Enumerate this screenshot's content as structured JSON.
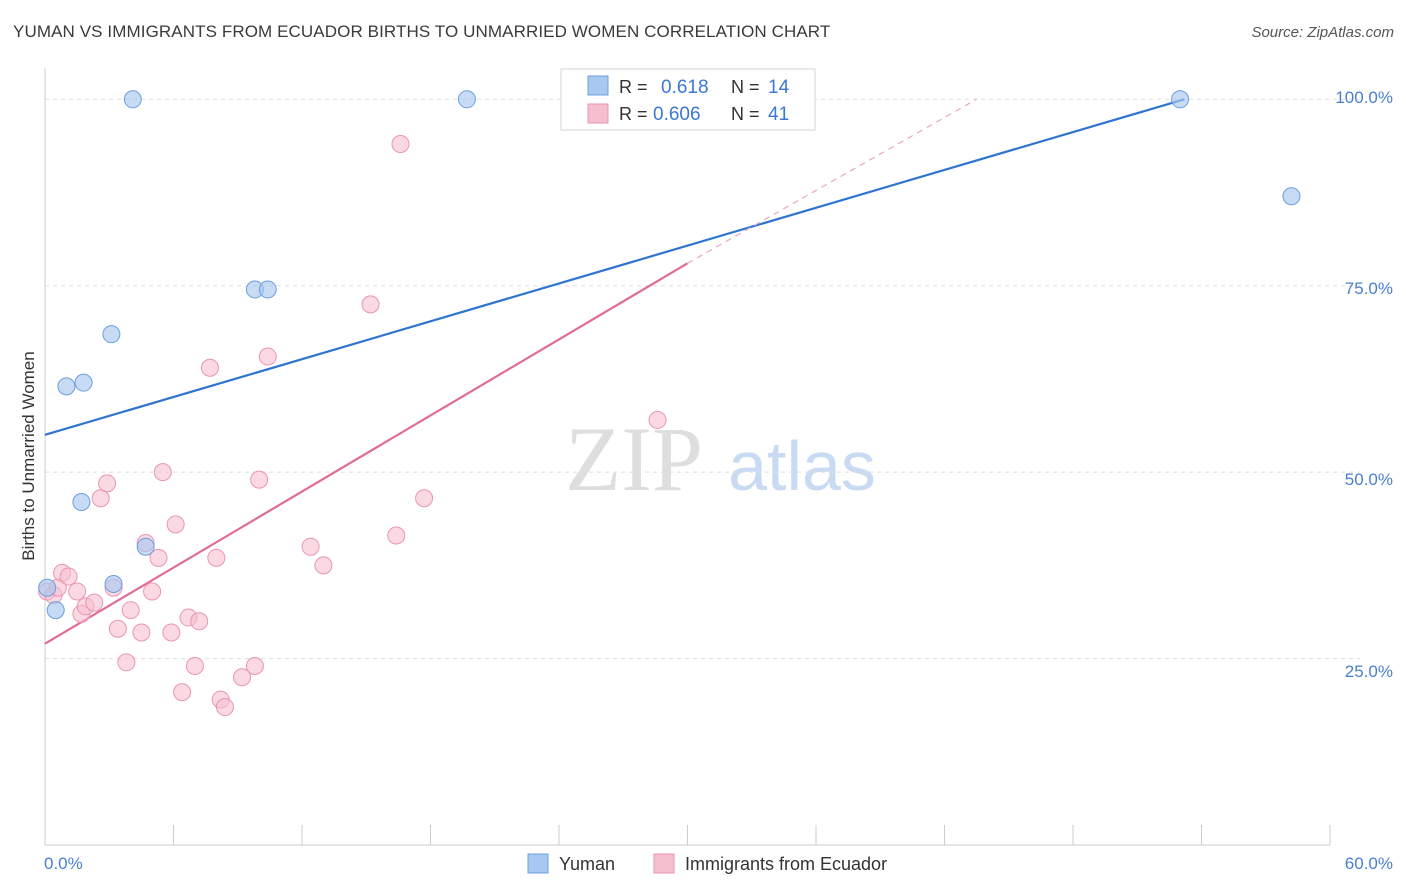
{
  "header": {
    "title": "YUMAN VS IMMIGRANTS FROM ECUADOR BIRTHS TO UNMARRIED WOMEN CORRELATION CHART",
    "source": "Source: ZipAtlas.com"
  },
  "watermark": {
    "zip": "ZIP",
    "atlas": "atlas"
  },
  "legend_top": [
    {
      "r_label": "R =",
      "r_value": "0.618",
      "n_label": "N =",
      "n_value": "14"
    },
    {
      "r_label": "R =",
      "r_value": "0.606",
      "n_label": "N =",
      "n_value": "41"
    }
  ],
  "colors": {
    "blue_fill": "#a9c8ef",
    "blue_stroke": "#6c9ee0",
    "blue_line": "#2f74d0",
    "pink_fill": "#f6bfd0",
    "pink_stroke": "#e896b2",
    "pink_line": "#e06c96",
    "value_text": "#3a78d4",
    "grid": "#dddddd",
    "axis_text": "#4a7fd0"
  },
  "chart_data": {
    "type": "scatter",
    "title": "YUMAN VS IMMIGRANTS FROM ECUADOR BIRTHS TO UNMARRIED WOMEN CORRELATION CHART",
    "ylabel": "Births to Unmarried Women",
    "xlabel": "",
    "xlim": [
      0,
      60
    ],
    "ylim": [
      0,
      105
    ],
    "x_tick_labels": [
      "0.0%",
      "60.0%"
    ],
    "y_ticks": [
      25,
      50,
      75,
      100
    ],
    "y_tick_labels": [
      "25.0%",
      "50.0%",
      "75.0%",
      "100.0%"
    ],
    "series": [
      {
        "name": "Yuman",
        "r": 0.618,
        "n": 14,
        "points": [
          [
            0.1,
            34.5
          ],
          [
            0.5,
            31.5
          ],
          [
            1.0,
            61.5
          ],
          [
            1.8,
            62.0
          ],
          [
            1.7,
            46.0
          ],
          [
            3.1,
            68.5
          ],
          [
            3.2,
            35.0
          ],
          [
            4.1,
            100.0
          ],
          [
            4.7,
            40.0
          ],
          [
            9.8,
            74.5
          ],
          [
            10.4,
            74.5
          ],
          [
            19.7,
            100.0
          ],
          [
            53.0,
            100.0
          ],
          [
            58.2,
            87.0
          ]
        ],
        "trend": {
          "x": [
            0,
            53.2
          ],
          "y": [
            55.0,
            100.0
          ]
        }
      },
      {
        "name": "Immigrants from Ecuador",
        "r": 0.606,
        "n": 41,
        "points": [
          [
            0.1,
            34.0
          ],
          [
            0.4,
            33.5
          ],
          [
            0.6,
            34.5
          ],
          [
            0.8,
            36.5
          ],
          [
            1.1,
            36.0
          ],
          [
            1.5,
            34.0
          ],
          [
            1.7,
            31.0
          ],
          [
            1.9,
            32.0
          ],
          [
            2.3,
            32.5
          ],
          [
            2.6,
            46.5
          ],
          [
            2.9,
            48.5
          ],
          [
            3.2,
            34.5
          ],
          [
            3.4,
            29.0
          ],
          [
            3.8,
            24.5
          ],
          [
            4.0,
            31.5
          ],
          [
            4.5,
            28.5
          ],
          [
            4.7,
            40.5
          ],
          [
            5.0,
            34.0
          ],
          [
            5.3,
            38.5
          ],
          [
            5.5,
            50.0
          ],
          [
            5.9,
            28.5
          ],
          [
            6.1,
            43.0
          ],
          [
            6.4,
            20.5
          ],
          [
            6.7,
            30.5
          ],
          [
            7.0,
            24.0
          ],
          [
            7.2,
            30.0
          ],
          [
            7.7,
            64.0
          ],
          [
            8.0,
            38.5
          ],
          [
            8.2,
            19.5
          ],
          [
            8.4,
            18.5
          ],
          [
            9.2,
            22.5
          ],
          [
            9.8,
            24.0
          ],
          [
            10.0,
            49.0
          ],
          [
            10.4,
            65.5
          ],
          [
            12.4,
            40.0
          ],
          [
            13.0,
            37.5
          ],
          [
            15.2,
            72.5
          ],
          [
            16.4,
            41.5
          ],
          [
            16.6,
            94.0
          ],
          [
            17.7,
            46.5
          ],
          [
            28.6,
            57.0
          ]
        ],
        "trend": {
          "x": [
            0,
            30.0
          ],
          "y": [
            27.0,
            78.0
          ]
        },
        "trend_dashed": {
          "x": [
            30.0,
            43.5
          ],
          "y": [
            78.0,
            100.0
          ]
        }
      }
    ],
    "legend": [
      "Yuman",
      "Immigrants from Ecuador"
    ]
  }
}
